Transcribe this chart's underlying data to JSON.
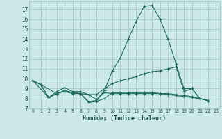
{
  "background_color": "#cce8e8",
  "grid_color": "#aacccc",
  "line_color": "#1a6b5a",
  "xlabel": "Humidex (Indice chaleur)",
  "ylabel_ticks": [
    7,
    8,
    9,
    10,
    11,
    12,
    13,
    14,
    15,
    16,
    17
  ],
  "xlabel_ticks": [
    0,
    1,
    2,
    3,
    4,
    5,
    6,
    7,
    8,
    9,
    10,
    11,
    12,
    13,
    14,
    15,
    16,
    17,
    18,
    19,
    20,
    21,
    22,
    23
  ],
  "xlim": [
    -0.5,
    23.5
  ],
  "ylim": [
    7,
    17.8
  ],
  "lines": [
    {
      "x": [
        0,
        1,
        2,
        3,
        4,
        5,
        6,
        7,
        8,
        9,
        10,
        11,
        12,
        13,
        14,
        15,
        16,
        17,
        18,
        19,
        20,
        21,
        22
      ],
      "y": [
        9.8,
        9.4,
        8.1,
        8.5,
        8.7,
        8.5,
        8.5,
        7.7,
        7.8,
        8.8,
        10.8,
        12.1,
        14.0,
        15.8,
        17.3,
        17.4,
        16.0,
        14.0,
        11.5,
        9.0,
        9.0,
        8.0,
        7.8
      ]
    },
    {
      "x": [
        0,
        1,
        2,
        3,
        4,
        5,
        6,
        7,
        8,
        9,
        10,
        11,
        12,
        13,
        14,
        15,
        16,
        17,
        18,
        19,
        20,
        21,
        22
      ],
      "y": [
        9.8,
        9.4,
        8.1,
        8.7,
        9.1,
        8.7,
        8.7,
        8.4,
        8.4,
        9.0,
        9.5,
        9.8,
        10.0,
        10.2,
        10.5,
        10.7,
        10.8,
        11.0,
        11.2,
        8.7,
        9.0,
        8.0,
        7.8
      ]
    },
    {
      "x": [
        0,
        2,
        3,
        4,
        5,
        6,
        7,
        8,
        9,
        10,
        11,
        12,
        13,
        14,
        15,
        16,
        17,
        18,
        19,
        20,
        21,
        22
      ],
      "y": [
        9.8,
        8.1,
        8.5,
        8.8,
        8.6,
        8.5,
        8.4,
        7.9,
        8.6,
        8.5,
        8.5,
        8.5,
        8.5,
        8.5,
        8.5,
        8.5,
        8.5,
        8.4,
        8.3,
        8.2,
        8.0,
        7.8
      ]
    },
    {
      "x": [
        0,
        1,
        3,
        4,
        5,
        6,
        7,
        8,
        9,
        10,
        11,
        12,
        13,
        14,
        15,
        16,
        17,
        18,
        19,
        20,
        21,
        22
      ],
      "y": [
        9.8,
        9.4,
        8.5,
        8.8,
        8.6,
        8.5,
        7.6,
        7.7,
        8.0,
        8.6,
        8.6,
        8.6,
        8.6,
        8.6,
        8.6,
        8.5,
        8.4,
        8.3,
        8.2,
        8.1,
        8.0,
        7.8
      ]
    }
  ]
}
